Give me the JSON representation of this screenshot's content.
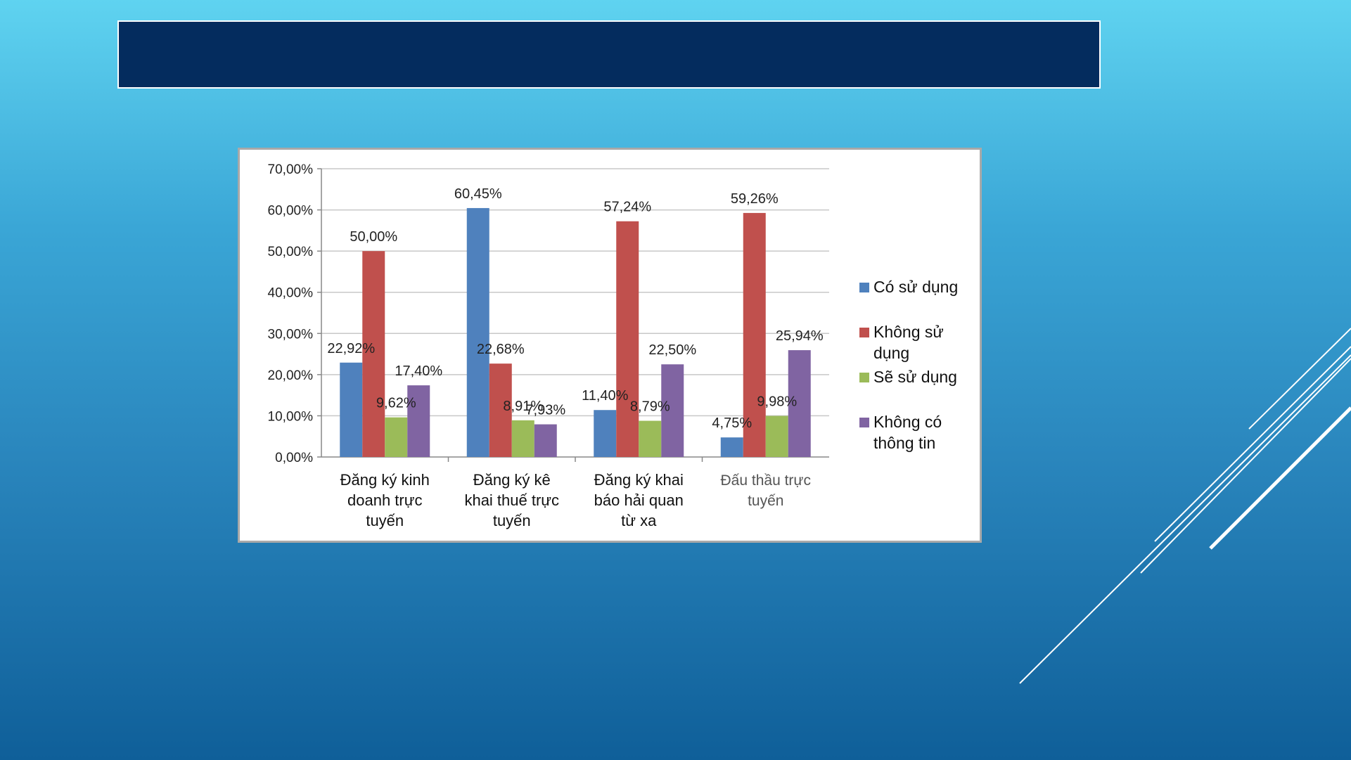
{
  "slide": {
    "title": ""
  },
  "chart_data": {
    "type": "bar",
    "title": "",
    "xlabel": "",
    "ylabel": "",
    "ylim": [
      0,
      70
    ],
    "yticks": [
      "0,00%",
      "10,00%",
      "20,00%",
      "30,00%",
      "40,00%",
      "50,00%",
      "60,00%",
      "70,00%"
    ],
    "grid": true,
    "legend_position": "right",
    "categories": [
      [
        "Đăng ký kinh",
        "doanh trực",
        "tuyến"
      ],
      [
        "Đăng ký kê",
        "khai thuế trực",
        "tuyến"
      ],
      [
        "Đăng ký khai",
        "báo hải quan",
        "từ xa"
      ],
      [
        "Đấu thầu trực",
        "tuyến"
      ]
    ],
    "series": [
      {
        "name": "Có sử dụng",
        "legend_lines": [
          "Có sử dụng"
        ],
        "color": "#4f81bd",
        "values": [
          22.92,
          60.45,
          11.4,
          4.75
        ],
        "labels": [
          "22,92%",
          "60,45%",
          "11,40%",
          "4,75%"
        ]
      },
      {
        "name": "Không sử dụng",
        "legend_lines": [
          "Không sử",
          "dụng"
        ],
        "color": "#c0504d",
        "values": [
          50.0,
          22.68,
          57.24,
          59.26
        ],
        "labels": [
          "50,00%",
          "22,68%",
          "57,24%",
          "59,26%"
        ]
      },
      {
        "name": "Sẽ sử dụng",
        "legend_lines": [
          "Sẽ sử dụng"
        ],
        "color": "#9bbb59",
        "values": [
          9.62,
          8.91,
          8.79,
          9.98
        ],
        "labels": [
          "9,62%",
          "8,91%",
          "8,79%",
          "9,98%"
        ]
      },
      {
        "name": "Không có thông tin",
        "legend_lines": [
          "Không có",
          "thông tin"
        ],
        "color": "#8064a2",
        "values": [
          17.4,
          7.93,
          22.5,
          25.94
        ],
        "labels": [
          "17,40%",
          "7,93%",
          "22,50%",
          "25,94%"
        ]
      }
    ]
  }
}
